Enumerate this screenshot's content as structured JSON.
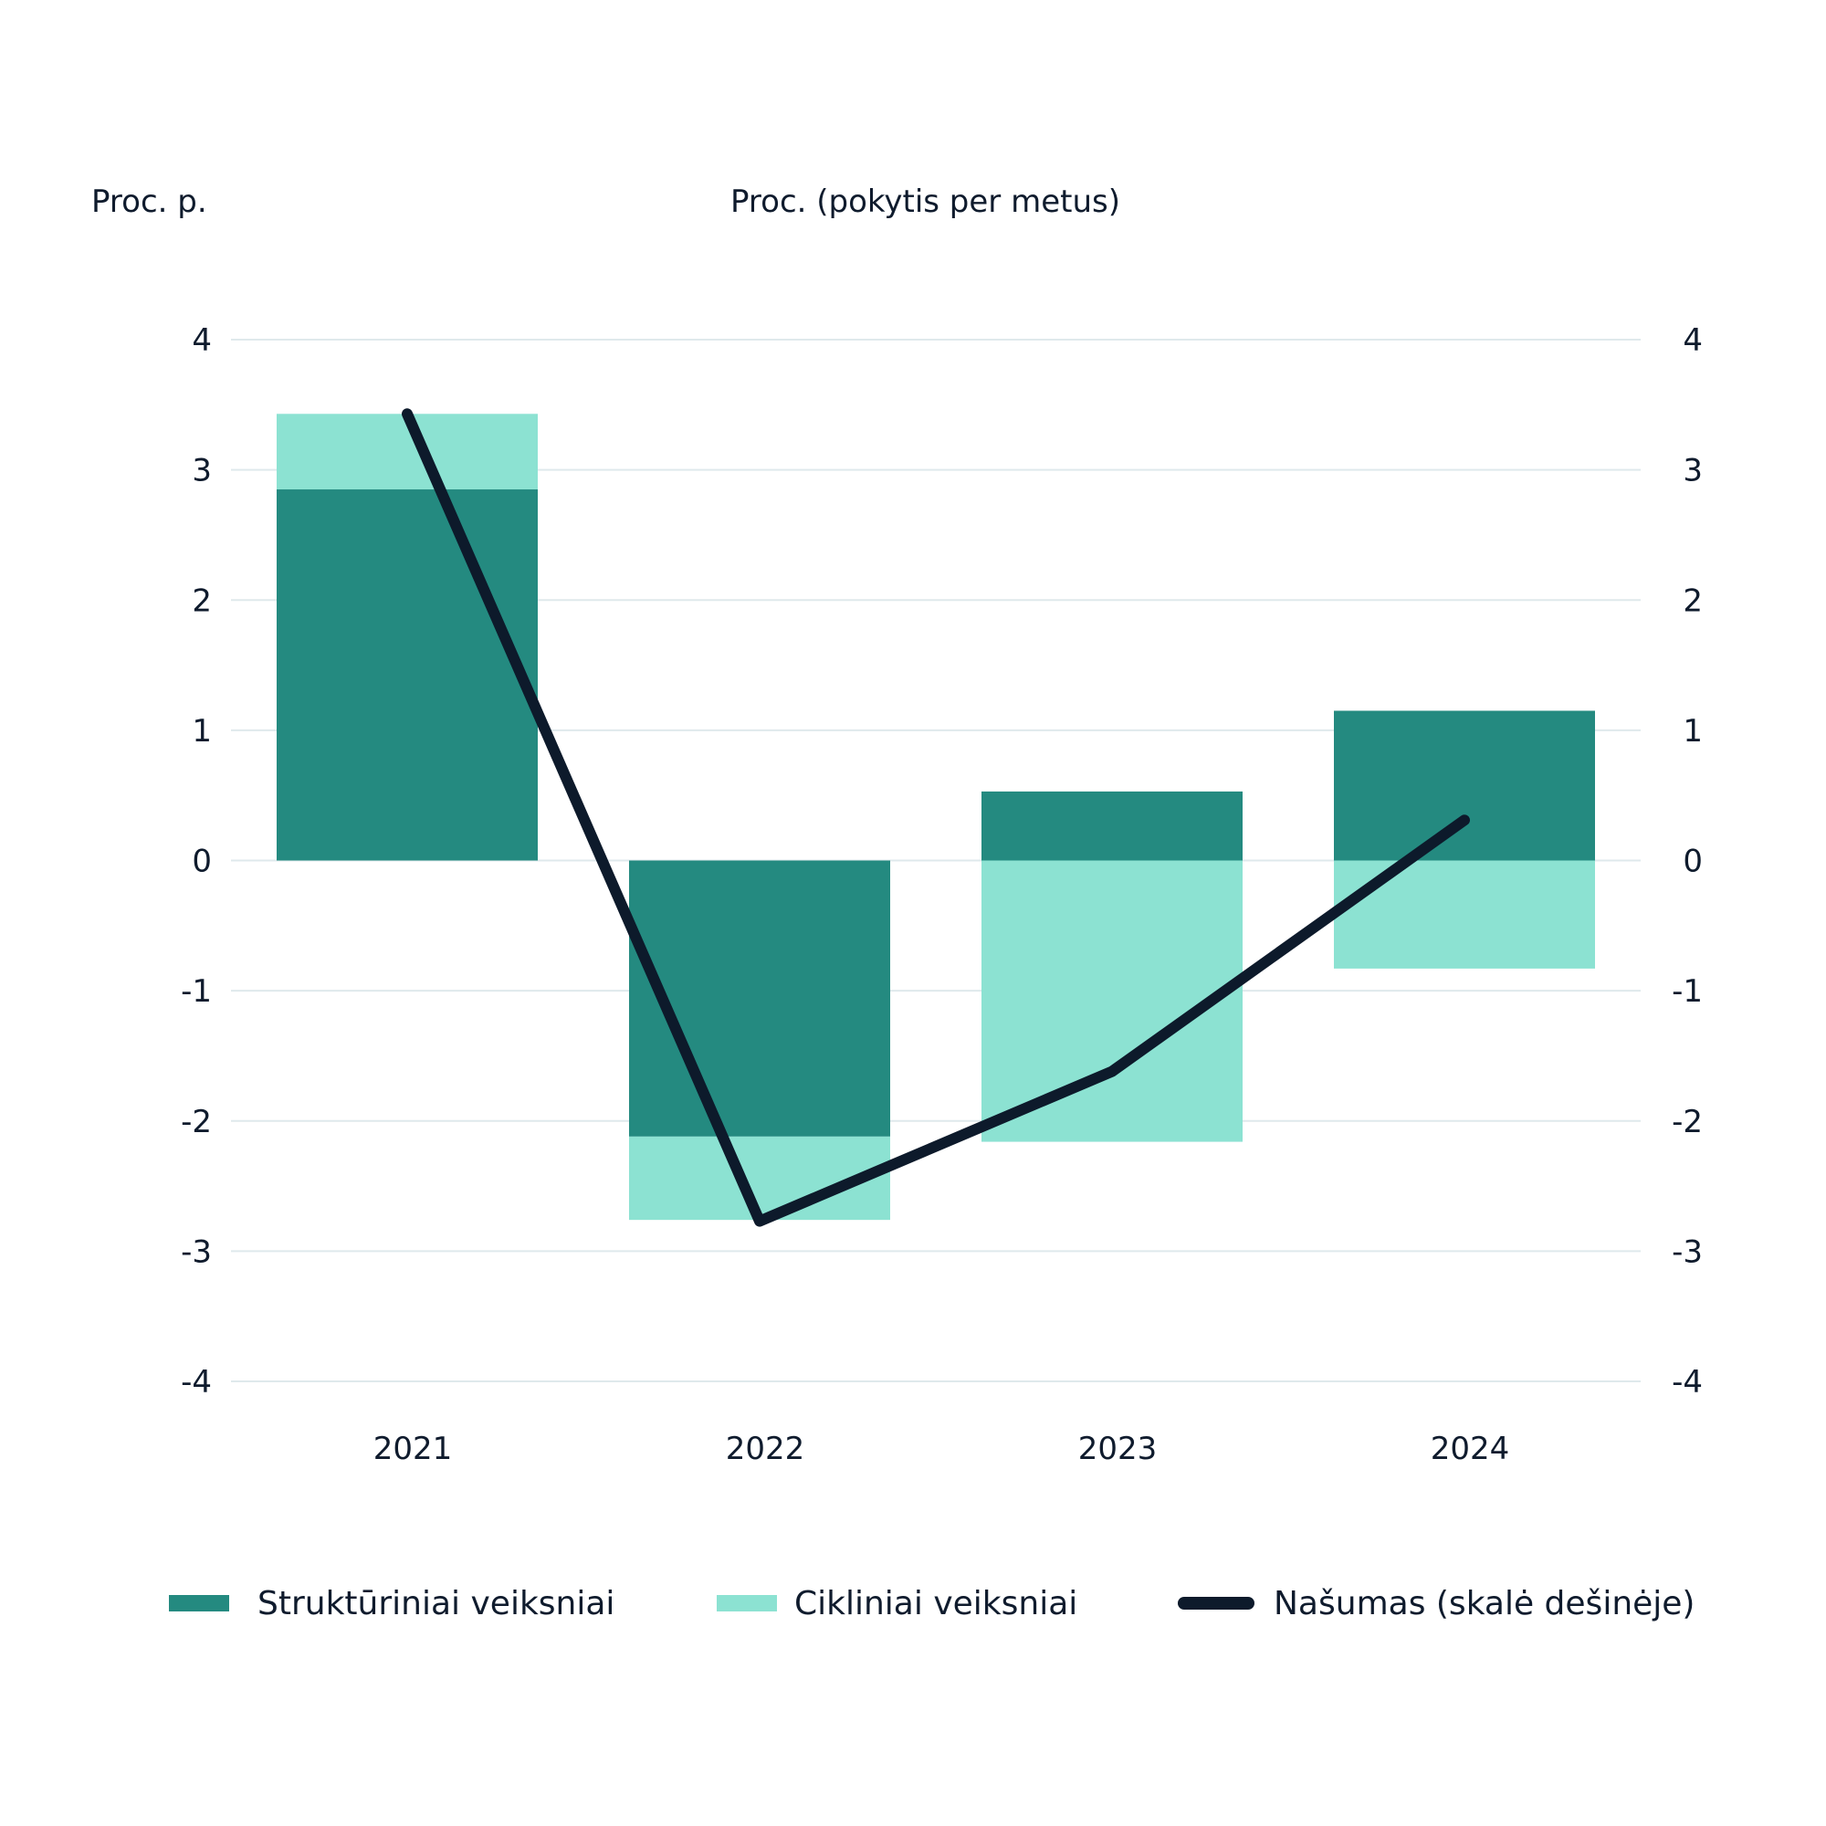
{
  "chart_data": {
    "type": "bar",
    "stacked": true,
    "title": "",
    "ylabel_left": "Proc. p.",
    "ylabel_right": "Proc. (pokytis per metus)",
    "categories": [
      "2021",
      "2022",
      "2023",
      "2024"
    ],
    "ylim": [
      -4,
      4
    ],
    "yticks": [
      "4",
      "3",
      "2",
      "1",
      "0",
      "-1",
      "-2",
      "-3",
      "-4"
    ],
    "ytick_values": [
      4,
      3,
      2,
      1,
      0,
      -1,
      -2,
      -3,
      -4
    ],
    "grid": true,
    "legend_position": "bottom",
    "series": [
      {
        "name": "Struktūriniai veiksniai",
        "kind": "bar",
        "color": "#248a80",
        "values": [
          2.85,
          -2.12,
          0.53,
          1.15
        ]
      },
      {
        "name": "Cikliniai veiksniai",
        "kind": "bar",
        "color": "#8ce2d2",
        "values": [
          0.58,
          -0.64,
          -2.16,
          -0.83
        ]
      },
      {
        "name": "Našumas (skalė dešinėje)",
        "kind": "line",
        "axis": "right",
        "color": "#0d1a2b",
        "values": [
          3.43,
          -2.77,
          -1.62,
          0.31
        ]
      }
    ]
  }
}
